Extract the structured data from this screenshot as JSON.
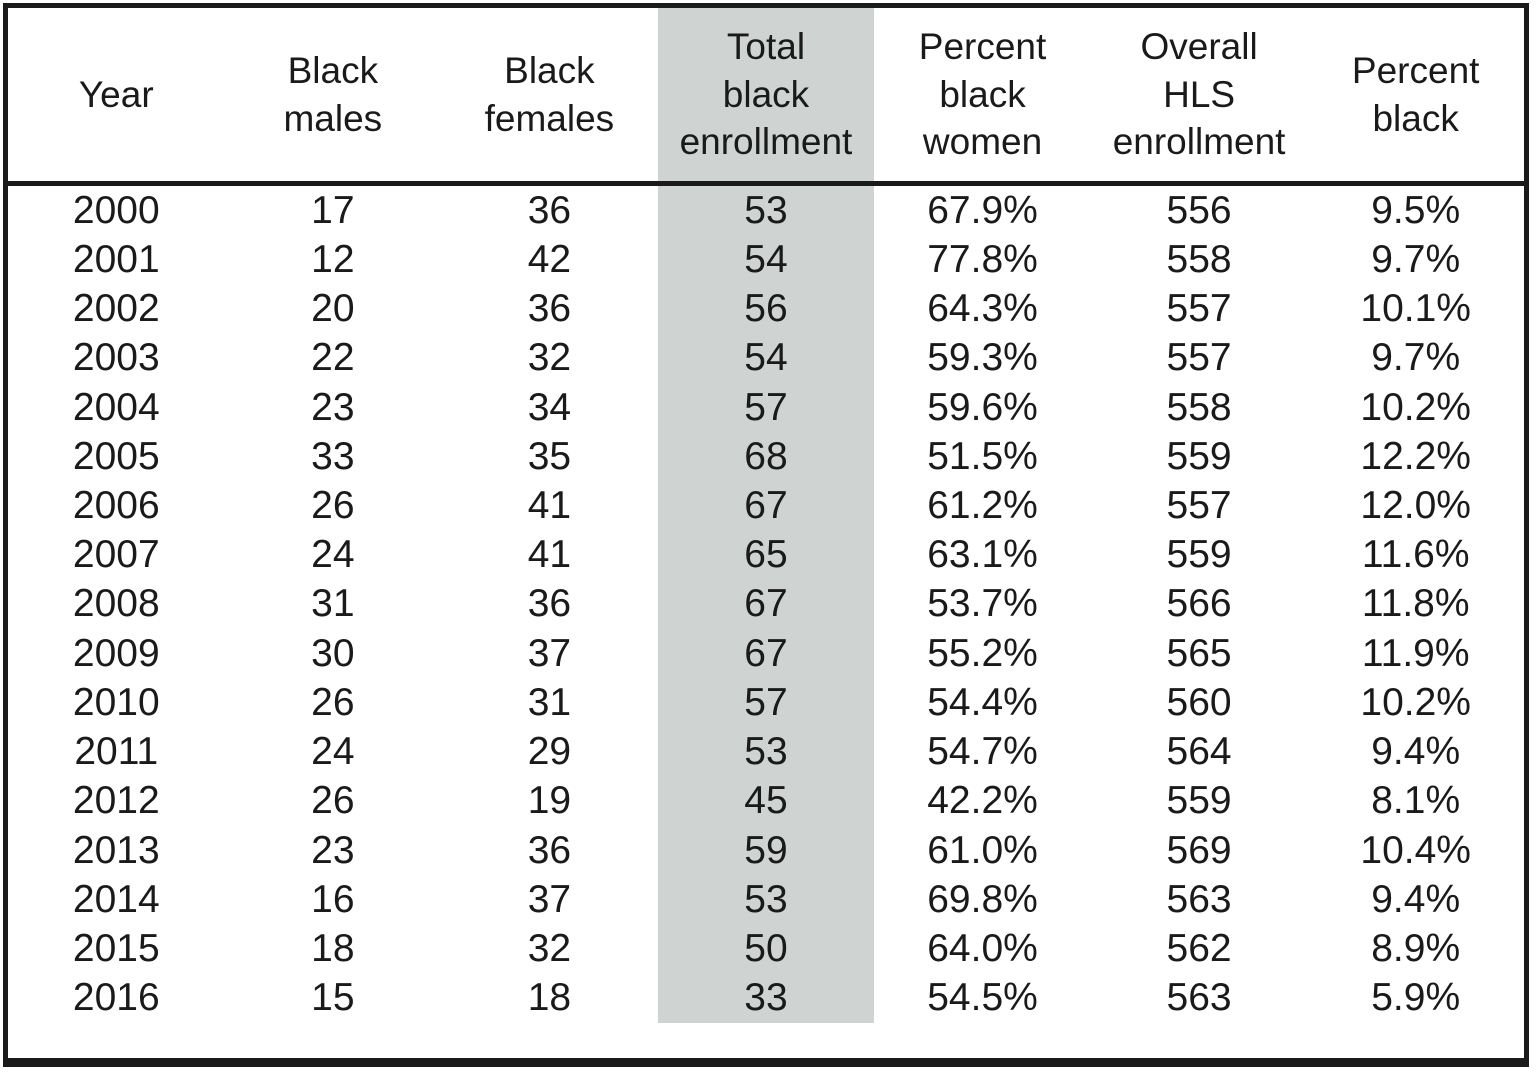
{
  "colors": {
    "background": "#ffffff",
    "border": "#1a1a1a",
    "text": "#1a1a1a",
    "highlight_column_bg": "#cfd3d2"
  },
  "table": {
    "headers": [
      "Year",
      "Black\nmales",
      "Black\nfemales",
      "Total\nblack\nenrollment",
      "Percent\nblack\nwomen",
      "Overall\nHLS\nenrollment",
      "Percent\nblack"
    ],
    "highlight_column_index": 3
  },
  "chart_data": {
    "type": "table",
    "columns": [
      "Year",
      "Black males",
      "Black females",
      "Total black enrollment",
      "Percent black women",
      "Overall HLS enrollment",
      "Percent black"
    ],
    "highlighted_column": "Total black enrollment",
    "rows": [
      [
        "2000",
        "17",
        "36",
        "53",
        "67.9%",
        "556",
        "9.5%"
      ],
      [
        "2001",
        "12",
        "42",
        "54",
        "77.8%",
        "558",
        "9.7%"
      ],
      [
        "2002",
        "20",
        "36",
        "56",
        "64.3%",
        "557",
        "10.1%"
      ],
      [
        "2003",
        "22",
        "32",
        "54",
        "59.3%",
        "557",
        "9.7%"
      ],
      [
        "2004",
        "23",
        "34",
        "57",
        "59.6%",
        "558",
        "10.2%"
      ],
      [
        "2005",
        "33",
        "35",
        "68",
        "51.5%",
        "559",
        "12.2%"
      ],
      [
        "2006",
        "26",
        "41",
        "67",
        "61.2%",
        "557",
        "12.0%"
      ],
      [
        "2007",
        "24",
        "41",
        "65",
        "63.1%",
        "559",
        "11.6%"
      ],
      [
        "2008",
        "31",
        "36",
        "67",
        "53.7%",
        "566",
        "11.8%"
      ],
      [
        "2009",
        "30",
        "37",
        "67",
        "55.2%",
        "565",
        "11.9%"
      ],
      [
        "2010",
        "26",
        "31",
        "57",
        "54.4%",
        "560",
        "10.2%"
      ],
      [
        "2011",
        "24",
        "29",
        "53",
        "54.7%",
        "564",
        "9.4%"
      ],
      [
        "2012",
        "26",
        "19",
        "45",
        "42.2%",
        "559",
        "8.1%"
      ],
      [
        "2013",
        "23",
        "36",
        "59",
        "61.0%",
        "569",
        "10.4%"
      ],
      [
        "2014",
        "16",
        "37",
        "53",
        "69.8%",
        "563",
        "9.4%"
      ],
      [
        "2015",
        "18",
        "32",
        "50",
        "64.0%",
        "562",
        "8.9%"
      ],
      [
        "2016",
        "15",
        "18",
        "33",
        "54.5%",
        "563",
        "5.9%"
      ]
    ]
  }
}
